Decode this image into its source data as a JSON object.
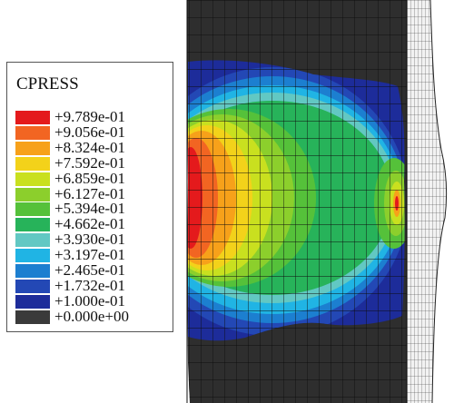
{
  "legend": {
    "title": "CPRESS",
    "entries": [
      {
        "label": "+9.789e-01",
        "color": "#e41a1c"
      },
      {
        "label": "+9.056e-01",
        "color": "#f26522"
      },
      {
        "label": "+8.324e-01",
        "color": "#f7a11a"
      },
      {
        "label": "+7.592e-01",
        "color": "#f3d21a"
      },
      {
        "label": "+6.859e-01",
        "color": "#c9e01f"
      },
      {
        "label": "+6.127e-01",
        "color": "#8ccf2c"
      },
      {
        "label": "+5.394e-01",
        "color": "#55c13a"
      },
      {
        "label": "+4.662e-01",
        "color": "#27b35a"
      },
      {
        "label": "+3.930e-01",
        "color": "#62c8c3"
      },
      {
        "label": "+3.197e-01",
        "color": "#20b4e4"
      },
      {
        "label": "+2.465e-01",
        "color": "#1c7fd0"
      },
      {
        "label": "+1.732e-01",
        "color": "#2348b5"
      },
      {
        "label": "+1.000e-01",
        "color": "#1d2c9a"
      },
      {
        "label": "+0.000e+00",
        "color": "#3a3a3a"
      }
    ]
  },
  "colors": {
    "mesh_dark": "#2e2e2e",
    "mesh_line": "#0d0d0d",
    "edge_region": "#4a4a4a"
  }
}
